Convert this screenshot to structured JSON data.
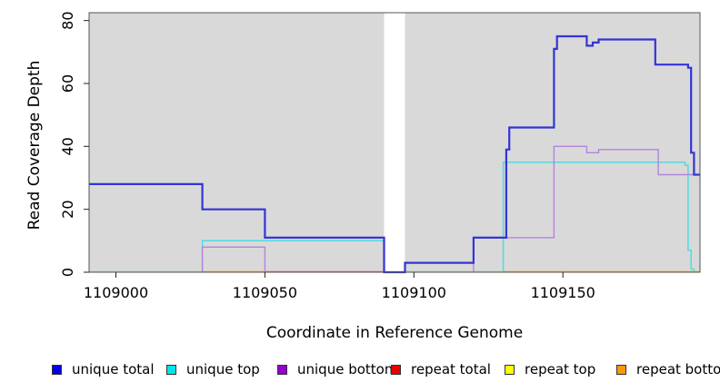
{
  "chart_data": {
    "type": "line",
    "style": "step",
    "title": "",
    "xlabel": "Coordinate in Reference Genome",
    "ylabel": "Read Coverage Depth",
    "xlim": [
      1108991,
      1109196
    ],
    "ylim": [
      0,
      82.5
    ],
    "xticks": [
      1109000,
      1109050,
      1109100,
      1109150
    ],
    "yticks": [
      0,
      20,
      40,
      60,
      80
    ],
    "grid": false,
    "plot_bg_color": "#d9d9d9",
    "gap_band": {
      "from": 1109090,
      "to": 1109097,
      "color": "#ffffff"
    },
    "series": [
      {
        "name": "unique top",
        "color": "#4fdce2",
        "width": 1.5,
        "paths": [
          [
            [
              1109029,
              0
            ],
            [
              1109029,
              10
            ],
            [
              1109090,
              10
            ],
            [
              1109090,
              0
            ]
          ],
          [
            [
              1109130,
              0
            ],
            [
              1109130,
              35
            ],
            [
              1109191,
              35
            ],
            [
              1109191,
              34
            ],
            [
              1109192,
              34
            ],
            [
              1109192,
              7
            ],
            [
              1109193,
              7
            ],
            [
              1109193,
              1
            ],
            [
              1109194,
              1
            ],
            [
              1109194,
              0
            ]
          ]
        ]
      },
      {
        "name": "unique bottom",
        "color": "#b284dc",
        "width": 1.4,
        "paths": [
          [
            [
              1109029,
              0
            ],
            [
              1109029,
              8
            ],
            [
              1109050,
              8
            ],
            [
              1109050,
              0
            ]
          ],
          [
            [
              1109120,
              0
            ],
            [
              1109120,
              11
            ],
            [
              1109147,
              11
            ],
            [
              1109147,
              40
            ],
            [
              1109158,
              40
            ],
            [
              1109158,
              38
            ],
            [
              1109162,
              38
            ],
            [
              1109162,
              39
            ],
            [
              1109182,
              39
            ],
            [
              1109182,
              31
            ],
            [
              1109196,
              31
            ]
          ]
        ]
      },
      {
        "name": "unique total",
        "color": "#3434d6",
        "width": 2.2,
        "paths": [
          [
            [
              1108991,
              28
            ],
            [
              1109029,
              28
            ],
            [
              1109029,
              20
            ],
            [
              1109050,
              20
            ],
            [
              1109050,
              11
            ],
            [
              1109090,
              11
            ],
            [
              1109090,
              0
            ],
            [
              1109097,
              0
            ],
            [
              1109097,
              3
            ],
            [
              1109120,
              3
            ],
            [
              1109120,
              11
            ],
            [
              1109131,
              11
            ],
            [
              1109131,
              39
            ],
            [
              1109132,
              39
            ],
            [
              1109132,
              46
            ],
            [
              1109147,
              46
            ],
            [
              1109147,
              71
            ],
            [
              1109148,
              71
            ],
            [
              1109148,
              75
            ],
            [
              1109158,
              75
            ],
            [
              1109158,
              72
            ],
            [
              1109160,
              72
            ],
            [
              1109160,
              73
            ],
            [
              1109162,
              73
            ],
            [
              1109162,
              74
            ],
            [
              1109181,
              74
            ],
            [
              1109181,
              66
            ],
            [
              1109192,
              66
            ],
            [
              1109192,
              65
            ],
            [
              1109193,
              65
            ],
            [
              1109193,
              38
            ],
            [
              1109194,
              38
            ],
            [
              1109194,
              31
            ],
            [
              1109196,
              31
            ]
          ]
        ]
      }
    ],
    "zero_line_segments": [
      {
        "from": 1108991,
        "to": 1109029,
        "color": "#8fd98f"
      },
      {
        "from": 1109029,
        "to": 1109050,
        "color": "#ffa010"
      },
      {
        "from": 1109050,
        "to": 1109090,
        "color": "#e8677d"
      },
      {
        "from": 1109097,
        "to": 1109130,
        "color": "#8fd98f"
      },
      {
        "from": 1109130,
        "to": 1109196,
        "color": "#ffa010"
      }
    ]
  },
  "legend": [
    {
      "label": "unique total",
      "color": "#0000e8"
    },
    {
      "label": "unique top",
      "color": "#00e6e6"
    },
    {
      "label": "unique bottom",
      "color": "#9400d3"
    },
    {
      "label": "repeat total",
      "color": "#e80000"
    },
    {
      "label": "repeat top",
      "color": "#ffff00"
    },
    {
      "label": "repeat bottom",
      "color": "#ff9800"
    }
  ]
}
